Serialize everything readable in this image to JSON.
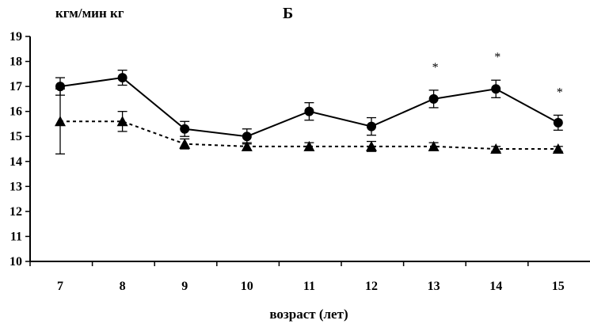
{
  "chart_data": {
    "type": "line",
    "panel_label": "Б",
    "ylabel": "кгм/мин кг",
    "xlabel": "возраст (лет)",
    "x": [
      7,
      8,
      9,
      10,
      11,
      12,
      13,
      14,
      15
    ],
    "ylim": [
      10,
      19
    ],
    "yticks": [
      10,
      11,
      12,
      13,
      14,
      15,
      16,
      17,
      18,
      19
    ],
    "grid": false,
    "series": [
      {
        "name": "circles-solid",
        "marker": "circle",
        "line": "solid",
        "values": [
          17.0,
          17.35,
          15.3,
          15.0,
          16.0,
          15.4,
          16.5,
          16.9,
          15.55
        ],
        "errors": [
          0.35,
          0.3,
          0.3,
          0.3,
          0.35,
          0.35,
          0.35,
          0.35,
          0.3
        ],
        "significant": [
          false,
          false,
          false,
          false,
          false,
          false,
          true,
          true,
          true
        ],
        "significance_mark": "*"
      },
      {
        "name": "triangles-dashed",
        "marker": "triangle",
        "line": "dashed",
        "values": [
          15.6,
          15.6,
          14.7,
          14.6,
          14.6,
          14.6,
          14.6,
          14.5,
          14.5
        ],
        "errors": [
          1.3,
          0.4,
          0.2,
          0.15,
          0.15,
          0.2,
          0.15,
          0.1,
          0.1
        ]
      }
    ]
  }
}
